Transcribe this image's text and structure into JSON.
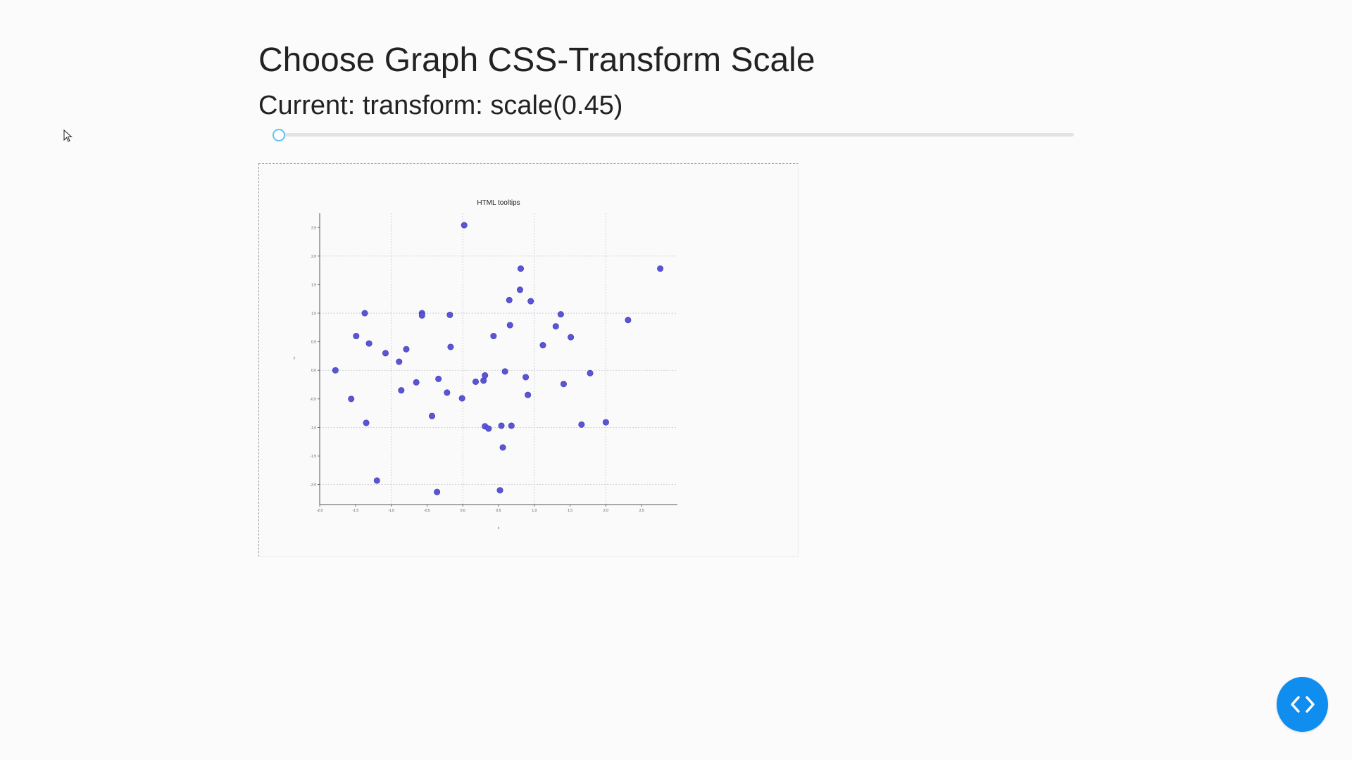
{
  "header": {
    "title": "Choose Graph CSS-Transform Scale",
    "current_label": "Current: transform: scale(0.45)"
  },
  "slider": {
    "value": 0.45,
    "accent": "#5cc4f2"
  },
  "chart_data": {
    "type": "scatter",
    "title": "HTML tooltips",
    "xlabel": "x",
    "ylabel": "y",
    "xlim": [
      -2.0,
      3.0
    ],
    "ylim": [
      -2.35,
      2.75
    ],
    "x_ticks": [
      "-2.0",
      "-1.5",
      "-1.0",
      "-0.5",
      "0.0",
      "0.5",
      "1.0",
      "1.5",
      "2.0",
      "2.5"
    ],
    "y_ticks": [
      "-2.0",
      "-1.5",
      "-1.0",
      "-0.5",
      "0.0",
      "0.5",
      "1.0",
      "1.5",
      "2.0",
      "2.5"
    ],
    "grid": true,
    "point_color": "#5a55d6",
    "points": [
      {
        "x": -1.78,
        "y": 0.0
      },
      {
        "x": -1.56,
        "y": -0.5
      },
      {
        "x": -1.49,
        "y": 0.6
      },
      {
        "x": -1.37,
        "y": 1.0
      },
      {
        "x": -1.35,
        "y": -0.92
      },
      {
        "x": -1.31,
        "y": 0.47
      },
      {
        "x": -1.2,
        "y": -1.93
      },
      {
        "x": -1.08,
        "y": 0.3
      },
      {
        "x": -0.89,
        "y": 0.15
      },
      {
        "x": -0.86,
        "y": -0.35
      },
      {
        "x": -0.79,
        "y": 0.37
      },
      {
        "x": -0.65,
        "y": -0.21
      },
      {
        "x": -0.57,
        "y": 1.0
      },
      {
        "x": -0.57,
        "y": 0.96
      },
      {
        "x": -0.43,
        "y": -0.8
      },
      {
        "x": -0.36,
        "y": -2.13
      },
      {
        "x": -0.34,
        "y": -0.15
      },
      {
        "x": -0.22,
        "y": -0.39
      },
      {
        "x": -0.18,
        "y": 0.97
      },
      {
        "x": -0.17,
        "y": 0.41
      },
      {
        "x": -0.01,
        "y": -0.49
      },
      {
        "x": 0.02,
        "y": 2.54
      },
      {
        "x": 0.18,
        "y": -0.2
      },
      {
        "x": 0.29,
        "y": -0.18
      },
      {
        "x": 0.31,
        "y": -0.09
      },
      {
        "x": 0.31,
        "y": -0.98
      },
      {
        "x": 0.36,
        "y": -1.02
      },
      {
        "x": 0.43,
        "y": 0.6
      },
      {
        "x": 0.52,
        "y": -2.1
      },
      {
        "x": 0.54,
        "y": -0.97
      },
      {
        "x": 0.56,
        "y": -1.35
      },
      {
        "x": 0.59,
        "y": -0.02
      },
      {
        "x": 0.65,
        "y": 1.23
      },
      {
        "x": 0.66,
        "y": 0.79
      },
      {
        "x": 0.68,
        "y": -0.97
      },
      {
        "x": 0.8,
        "y": 1.41
      },
      {
        "x": 0.81,
        "y": 1.78
      },
      {
        "x": 0.88,
        "y": -0.12
      },
      {
        "x": 0.91,
        "y": -0.43
      },
      {
        "x": 0.95,
        "y": 1.21
      },
      {
        "x": 1.12,
        "y": 0.44
      },
      {
        "x": 1.3,
        "y": 0.77
      },
      {
        "x": 1.37,
        "y": 0.98
      },
      {
        "x": 1.41,
        "y": -0.24
      },
      {
        "x": 1.51,
        "y": 0.58
      },
      {
        "x": 1.66,
        "y": -0.95
      },
      {
        "x": 1.78,
        "y": -0.05
      },
      {
        "x": 2.0,
        "y": -0.91
      },
      {
        "x": 2.31,
        "y": 0.88
      },
      {
        "x": 2.76,
        "y": 1.78
      }
    ]
  },
  "icons": {
    "fab_icon": "code-brackets-icon",
    "fab_color": "#0f8ef0",
    "cursor_icon": "mouse-pointer-icon"
  }
}
